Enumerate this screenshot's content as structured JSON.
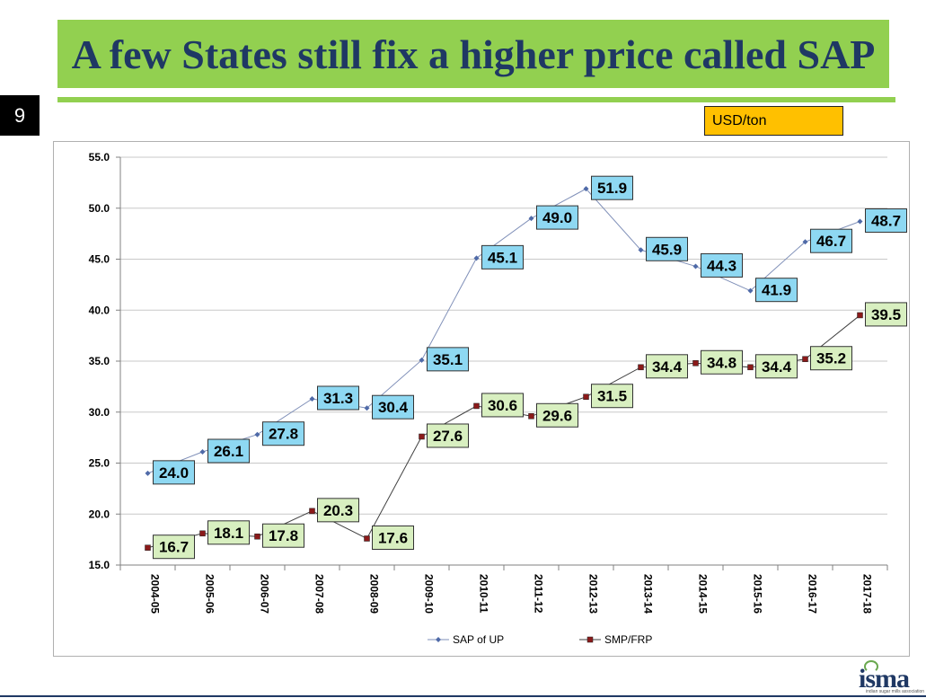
{
  "slide": {
    "title": "A few States still fix a higher price called SAP",
    "number": "9",
    "unit": "USD/ton",
    "logo": "isma",
    "logo_sub": "indian sugar mills association"
  },
  "colors": {
    "title_bg": "#92d050",
    "title_text": "#1f3864",
    "unit_bg": "#ffc000",
    "sap_line": "#7f8fb8",
    "sap_marker": "#4f6aa8",
    "sap_label_bg": "#8ed8f2",
    "smp_line": "#404040",
    "smp_marker": "#8b1a1a",
    "smp_label_bg": "#d8efc0"
  },
  "chart_data": {
    "type": "line",
    "categories": [
      "2004-05",
      "2005-06",
      "2006-07",
      "2007-08",
      "2008-09",
      "2009-10",
      "2010-11",
      "2011-12",
      "2012-13",
      "2013-14",
      "2014-15",
      "2015-16",
      "2016-17",
      "2017-18"
    ],
    "series": [
      {
        "name": "SAP of UP",
        "values": [
          24.0,
          26.1,
          27.8,
          31.3,
          30.4,
          35.1,
          45.1,
          49.0,
          51.9,
          45.9,
          44.3,
          41.9,
          46.7,
          48.7
        ]
      },
      {
        "name": "SMP/FRP",
        "values": [
          16.7,
          18.1,
          17.8,
          20.3,
          17.6,
          27.6,
          30.6,
          29.6,
          31.5,
          34.4,
          34.8,
          34.4,
          35.2,
          39.5
        ]
      }
    ],
    "ylim": [
      15.0,
      55.0
    ],
    "yticks": [
      "15.0",
      "20.0",
      "25.0",
      "30.0",
      "35.0",
      "40.0",
      "45.0",
      "50.0",
      "55.0"
    ],
    "grid": true,
    "legend": "bottom"
  }
}
